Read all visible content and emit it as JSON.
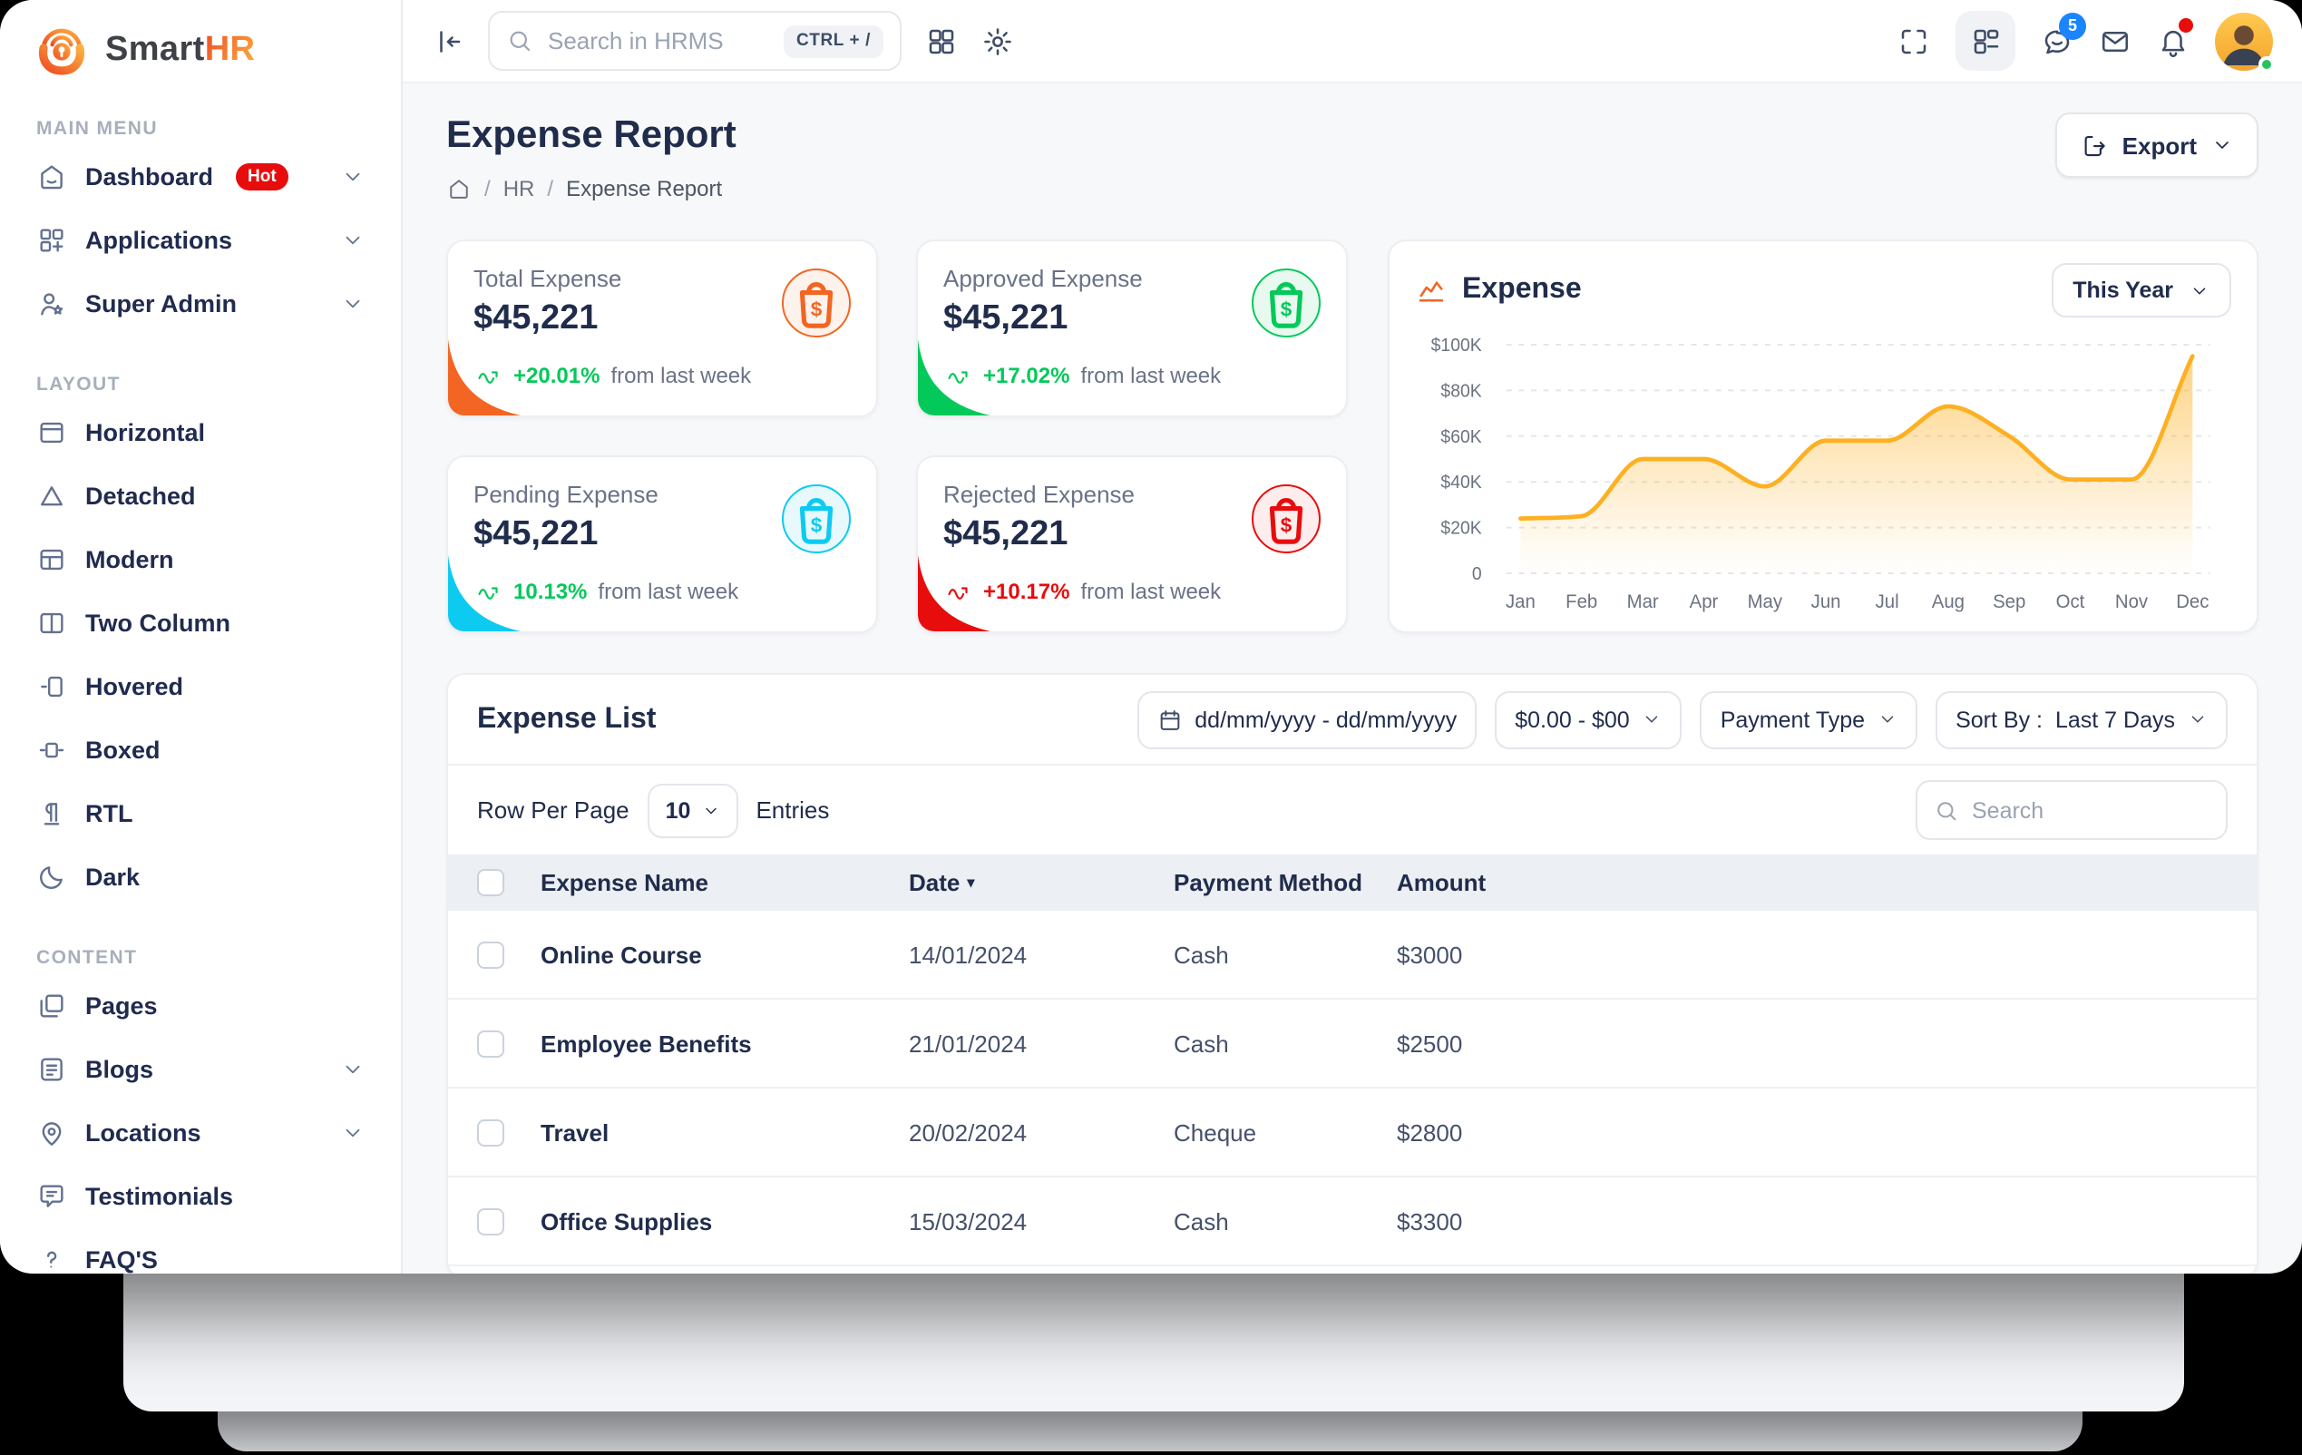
{
  "brand": {
    "name_primary": "Smart",
    "name_accent": "HR"
  },
  "topbar": {
    "search_placeholder": "Search in HRMS",
    "shortcut": "CTRL + /",
    "chat_badge": "5"
  },
  "sidebar": {
    "sections": [
      {
        "label": "MAIN MENU",
        "items": [
          {
            "label": "Dashboard",
            "badge": "Hot"
          },
          {
            "label": "Applications"
          },
          {
            "label": "Super Admin"
          }
        ]
      },
      {
        "label": "LAYOUT",
        "items": [
          {
            "label": "Horizontal"
          },
          {
            "label": "Detached"
          },
          {
            "label": "Modern"
          },
          {
            "label": "Two Column"
          },
          {
            "label": "Hovered"
          },
          {
            "label": "Boxed"
          },
          {
            "label": "RTL"
          },
          {
            "label": "Dark"
          }
        ]
      },
      {
        "label": "CONTENT",
        "items": [
          {
            "label": "Pages"
          },
          {
            "label": "Blogs"
          },
          {
            "label": "Locations"
          },
          {
            "label": "Testimonials"
          },
          {
            "label": "FAQ'S"
          }
        ]
      }
    ]
  },
  "page": {
    "title": "Expense Report",
    "crumb1": "HR",
    "crumb2": "Expense Report",
    "export_label": "Export"
  },
  "stats": [
    {
      "label": "Total Expense",
      "value": "$45,221",
      "percent": "+20.01%",
      "note": "from last week",
      "accent": "#F26522",
      "tint": "#FEF2EC",
      "percent_color": "#03C95A"
    },
    {
      "label": "Approved Expense",
      "value": "$45,221",
      "percent": "+17.02%",
      "note": "from last week",
      "accent": "#03C95A",
      "tint": "#E8FAF0",
      "percent_color": "#03C95A"
    },
    {
      "label": "Pending Expense",
      "value": "$45,221",
      "percent": "10.13%",
      "note": "from last week",
      "accent": "#0DCAF0",
      "tint": "#E7F9FD",
      "percent_color": "#03C95A"
    },
    {
      "label": "Rejected Expense",
      "value": "$45,221",
      "percent": "+10.17%",
      "note": "from last week",
      "accent": "#E70D0D",
      "tint": "#FDEDED",
      "percent_color": "#E70D0D"
    }
  ],
  "chart_data": {
    "type": "area",
    "title": "Expense",
    "range_label": "This Year",
    "categories": [
      "Jan",
      "Feb",
      "Mar",
      "Apr",
      "May",
      "Jun",
      "Jul",
      "Aug",
      "Sep",
      "Oct",
      "Nov",
      "Dec"
    ],
    "values": [
      24,
      25,
      50,
      50,
      38,
      58,
      58,
      73,
      60,
      41,
      41,
      95
    ],
    "unit": "thousand USD",
    "ylim": [
      0,
      100
    ],
    "ytick_labels": [
      "0",
      "$20K",
      "$40K",
      "$60K",
      "$80K",
      "$100K"
    ],
    "line_color": "#FDB022",
    "fill_color": "#FDB022",
    "grid": "dashed-horizontal",
    "legend": false
  },
  "list": {
    "title": "Expense List",
    "filters": {
      "date_range": "dd/mm/yyyy - dd/mm/yyyy",
      "amount_range": "$0.00 - $00",
      "payment_type": "Payment Type",
      "sort_prefix": "Sort By :",
      "sort_value": "Last 7 Days"
    },
    "controls": {
      "row_per_page_label": "Row Per Page",
      "row_per_page_value": "10",
      "entries_label": "Entries",
      "search_placeholder": "Search"
    },
    "columns": [
      "Expense Name",
      "Date",
      "Payment Method",
      "Amount"
    ],
    "rows": [
      {
        "name": "Online Course",
        "date": "14/01/2024",
        "payment": "Cash",
        "amount": "$3000"
      },
      {
        "name": "Employee Benefits",
        "date": "21/01/2024",
        "payment": "Cash",
        "amount": "$2500"
      },
      {
        "name": "Travel",
        "date": "20/02/2024",
        "payment": "Cheque",
        "amount": "$2800"
      },
      {
        "name": "Office Supplies",
        "date": "15/03/2024",
        "payment": "Cash",
        "amount": "$3300"
      }
    ]
  }
}
